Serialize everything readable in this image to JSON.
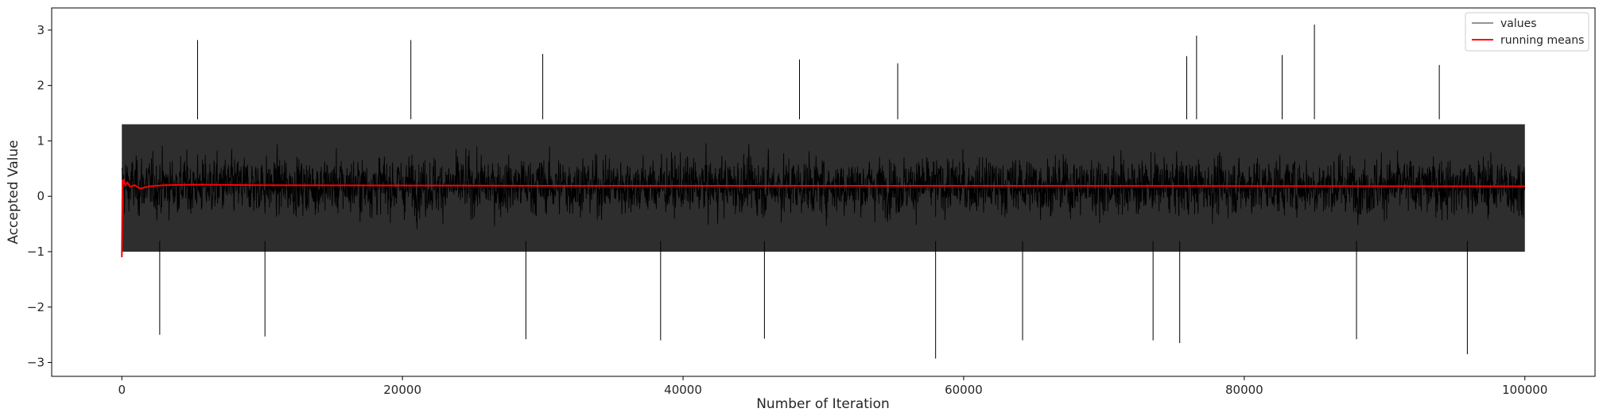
{
  "chart_data": {
    "type": "line",
    "title": "",
    "xlabel": "Number of Iteration",
    "ylabel": "Accepted Value",
    "xlim": [
      -5000,
      105000
    ],
    "ylim": [
      -3.25,
      3.4
    ],
    "xticks": [
      0,
      20000,
      40000,
      60000,
      80000,
      100000
    ],
    "yticks": [
      -3,
      -2,
      -1,
      0,
      1,
      2,
      3
    ],
    "x_tick_labels": [
      "0",
      "20000",
      "40000",
      "60000",
      "80000",
      "100000"
    ],
    "y_tick_labels": [
      "−3",
      "−2",
      "−1",
      "0",
      "1",
      "2",
      "3"
    ],
    "grid": false,
    "legend_position": "top-right",
    "series": [
      {
        "name": "values",
        "color": "#000000",
        "style": "trace",
        "n_points": 100000,
        "mean": 0.19,
        "typical_upper": 1.8,
        "typical_lower": -1.5,
        "dense_band": [
          -1.0,
          1.3
        ],
        "peaks": [
          {
            "x": 5400,
            "y": 2.82
          },
          {
            "x": 20600,
            "y": 2.82
          },
          {
            "x": 30000,
            "y": 2.57
          },
          {
            "x": 48300,
            "y": 2.47
          },
          {
            "x": 55300,
            "y": 2.4
          },
          {
            "x": 76600,
            "y": 2.9
          },
          {
            "x": 75900,
            "y": 2.53
          },
          {
            "x": 82700,
            "y": 2.55
          },
          {
            "x": 85000,
            "y": 3.1
          },
          {
            "x": 93900,
            "y": 2.37
          }
        ],
        "troughs": [
          {
            "x": 2700,
            "y": -2.5
          },
          {
            "x": 10200,
            "y": -2.53
          },
          {
            "x": 28800,
            "y": -2.58
          },
          {
            "x": 38400,
            "y": -2.6
          },
          {
            "x": 45800,
            "y": -2.57
          },
          {
            "x": 58000,
            "y": -2.93
          },
          {
            "x": 64200,
            "y": -2.6
          },
          {
            "x": 73500,
            "y": -2.6
          },
          {
            "x": 75400,
            "y": -2.65
          },
          {
            "x": 88000,
            "y": -2.58
          },
          {
            "x": 95900,
            "y": -2.85
          }
        ]
      },
      {
        "name": "running means",
        "color": "#ff0000",
        "style": "line",
        "x": [
          0,
          50,
          100,
          150,
          250,
          400,
          600,
          900,
          1300,
          2000,
          3000,
          5000,
          10000,
          30000,
          60000,
          100000
        ],
        "y": [
          -1.1,
          0.3,
          0.22,
          0.28,
          0.2,
          0.25,
          0.17,
          0.2,
          0.14,
          0.18,
          0.2,
          0.21,
          0.2,
          0.19,
          0.19,
          0.18
        ]
      }
    ]
  }
}
